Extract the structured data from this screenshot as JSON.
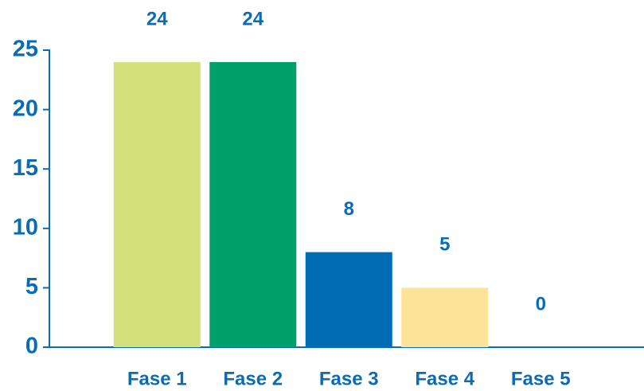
{
  "chart_data": {
    "type": "bar",
    "categories": [
      "Fase 1",
      "Fase 2",
      "Fase 3",
      "Fase 4",
      "Fase 5"
    ],
    "values": [
      24,
      24,
      8,
      5,
      0
    ],
    "colors": [
      "#d4e17a",
      "#00a06b",
      "#006cb5",
      "#fde398"
    ],
    "ylim": [
      0,
      25
    ],
    "yticks": [
      0,
      5,
      10,
      15,
      20,
      25
    ],
    "grid": false
  }
}
